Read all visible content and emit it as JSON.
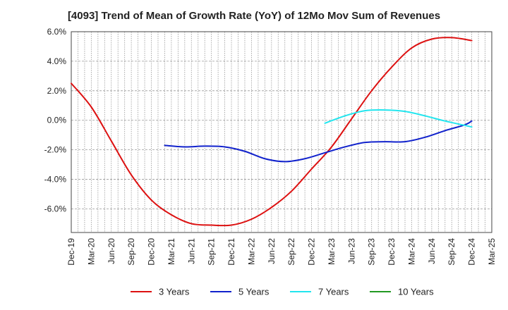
{
  "chart_data": {
    "type": "line",
    "title": "[4093]  Trend of Mean of Growth Rate (YoY) of 12Mo Mov Sum of Revenues",
    "xlabel": "",
    "ylabel": "",
    "ylim": [
      -7.6,
      6.0
    ],
    "y_ticks": [
      6.0,
      4.0,
      2.0,
      0.0,
      -2.0,
      -4.0,
      -6.0
    ],
    "y_tick_labels": [
      "6.0%",
      "4.0%",
      "2.0%",
      "0.0%",
      "-2.0%",
      "-4.0%",
      "-6.0%"
    ],
    "x_ticks": [
      "Dec-19",
      "Mar-20",
      "Jun-20",
      "Sep-20",
      "Dec-20",
      "Mar-21",
      "Jun-21",
      "Sep-21",
      "Dec-21",
      "Mar-22",
      "Jun-22",
      "Sep-22",
      "Dec-22",
      "Mar-23",
      "Jun-23",
      "Sep-23",
      "Dec-23",
      "Mar-24",
      "Jun-24",
      "Sep-24",
      "Dec-24",
      "Mar-25"
    ],
    "x_range_months": [
      0,
      63
    ],
    "grid": true,
    "legend_position": "bottom",
    "series": [
      {
        "name": "3 Years",
        "color": "#dd1111",
        "x": [
          0,
          3,
          6,
          9,
          12,
          15,
          18,
          21,
          24,
          27,
          30,
          33,
          36,
          39,
          42,
          45,
          48,
          51,
          54,
          57,
          60
        ],
        "values": [
          2.5,
          0.9,
          -1.4,
          -3.7,
          -5.4,
          -6.4,
          -7.0,
          -7.1,
          -7.1,
          -6.7,
          -5.9,
          -4.8,
          -3.3,
          -1.8,
          0.1,
          2.0,
          3.6,
          4.9,
          5.5,
          5.6,
          5.4
        ]
      },
      {
        "name": "5 Years",
        "color": "#1122cc",
        "x": [
          14,
          17,
          20,
          23,
          26,
          29,
          32,
          35,
          38,
          41,
          44,
          47,
          50,
          53,
          56,
          59,
          60
        ],
        "values": [
          -1.7,
          -1.8,
          -1.75,
          -1.8,
          -2.1,
          -2.6,
          -2.8,
          -2.6,
          -2.2,
          -1.8,
          -1.5,
          -1.45,
          -1.45,
          -1.15,
          -0.7,
          -0.3,
          -0.05
        ]
      },
      {
        "name": "7 Years",
        "color": "#22e5ee",
        "x": [
          38,
          41,
          44,
          47,
          50,
          53,
          56,
          59,
          60
        ],
        "values": [
          -0.2,
          0.3,
          0.65,
          0.7,
          0.6,
          0.3,
          -0.05,
          -0.35,
          -0.45
        ]
      },
      {
        "name": "10 Years",
        "color": "#229922",
        "x": [],
        "values": []
      }
    ]
  }
}
